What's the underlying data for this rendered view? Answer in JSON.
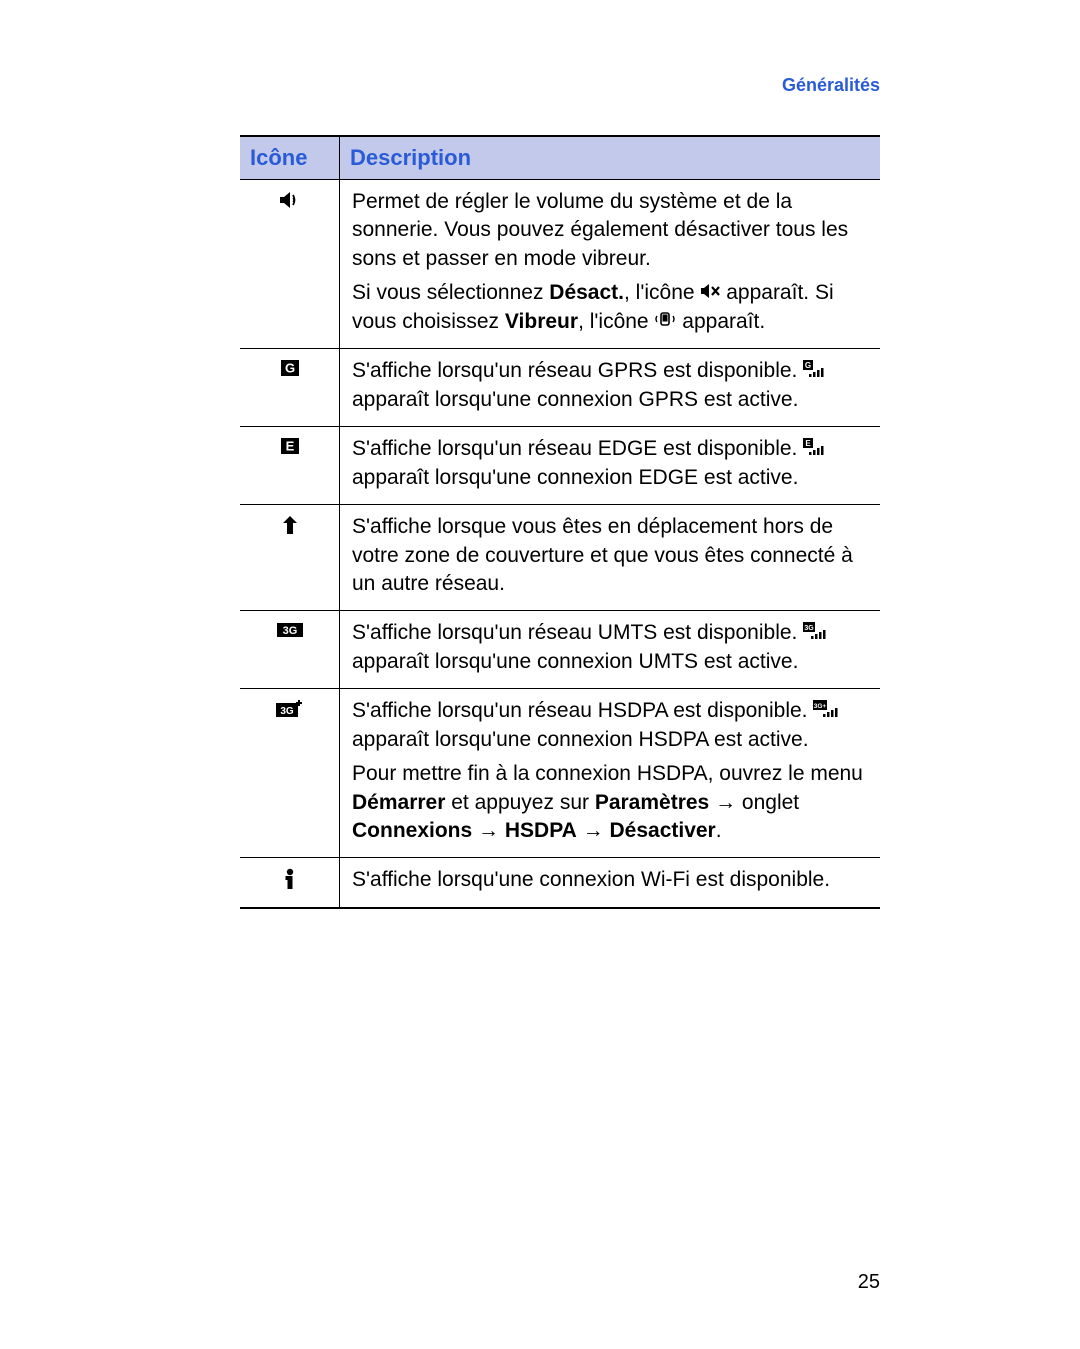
{
  "header": {
    "section_link": "Généralités"
  },
  "table": {
    "columns": {
      "icon": "Icône",
      "description": "Description"
    },
    "rows": [
      {
        "icon_name": "volume-icon",
        "icon_svg_idx": 0,
        "desc_paragraphs": [
          {
            "segments": [
              {
                "text": "Permet de régler le volume du système et de la sonnerie. Vous pouvez également désactiver tous les sons et passer en mode vibreur."
              }
            ]
          },
          {
            "segments": [
              {
                "text": "Si vous sélectionnez "
              },
              {
                "text": "Désact.",
                "bold": true
              },
              {
                "text": ", l'icône "
              },
              {
                "inline_icon": "mute-icon",
                "svg_idx": 1
              },
              {
                "text": " apparaît. Si vous choisissez "
              },
              {
                "text": "Vibreur",
                "bold": true
              },
              {
                "text": ", l'icône "
              },
              {
                "inline_icon": "vibrate-icon",
                "svg_idx": 2
              },
              {
                "text": " apparaît."
              }
            ]
          }
        ]
      },
      {
        "icon_name": "gprs-badge-icon",
        "icon_svg_idx": 3,
        "desc_paragraphs": [
          {
            "segments": [
              {
                "text": "S'affiche lorsqu'un réseau GPRS est disponible. "
              },
              {
                "inline_icon": "gprs-signal-icon",
                "svg_idx": 4
              },
              {
                "text": " apparaît lorsqu'une connexion GPRS est active."
              }
            ]
          }
        ]
      },
      {
        "icon_name": "edge-badge-icon",
        "icon_svg_idx": 5,
        "desc_paragraphs": [
          {
            "segments": [
              {
                "text": "S'affiche lorsqu'un réseau EDGE est disponible. "
              },
              {
                "inline_icon": "edge-signal-icon",
                "svg_idx": 6
              },
              {
                "text": " apparaît lorsqu'une connexion EDGE est active."
              }
            ]
          }
        ]
      },
      {
        "icon_name": "roaming-icon",
        "icon_svg_idx": 7,
        "desc_paragraphs": [
          {
            "segments": [
              {
                "text": "S'affiche lorsque vous êtes en déplacement hors de votre zone de couverture et que vous êtes connecté à un autre réseau."
              }
            ]
          }
        ]
      },
      {
        "icon_name": "umts-badge-icon",
        "icon_svg_idx": 8,
        "desc_paragraphs": [
          {
            "segments": [
              {
                "text": "S'affiche lorsqu'un réseau UMTS est disponible. "
              },
              {
                "inline_icon": "umts-signal-icon",
                "svg_idx": 9
              },
              {
                "text": " apparaît lorsqu'une connexion UMTS est active."
              }
            ]
          }
        ]
      },
      {
        "icon_name": "hsdpa-badge-icon",
        "icon_svg_idx": 10,
        "desc_paragraphs": [
          {
            "segments": [
              {
                "text": "S'affiche lorsqu'un réseau HSDPA est disponible. "
              },
              {
                "inline_icon": "hsdpa-signal-icon",
                "svg_idx": 11
              },
              {
                "text": " apparaît lorsqu'une connexion HSDPA est active."
              }
            ]
          },
          {
            "segments": [
              {
                "text": "Pour mettre fin à la connexion HSDPA, ouvrez le menu "
              },
              {
                "text": "Démarrer",
                "bold": true
              },
              {
                "text": " et appuyez sur "
              },
              {
                "text": "Paramètres",
                "bold": true
              },
              {
                "text": " → onglet "
              },
              {
                "text": "Connexions",
                "bold": true
              },
              {
                "text": " → "
              },
              {
                "text": "HSDPA",
                "bold": true
              },
              {
                "text": " → "
              },
              {
                "text": "Désactiver",
                "bold": true
              },
              {
                "text": "."
              }
            ]
          }
        ]
      },
      {
        "icon_name": "wifi-info-icon",
        "icon_svg_idx": 12,
        "desc_paragraphs": [
          {
            "segments": [
              {
                "text": "S'affiche lorsqu'une connexion Wi-Fi est disponible."
              }
            ]
          }
        ]
      }
    ]
  },
  "page_number": "25",
  "colors": {
    "header_bg": "#c3c9ea",
    "link_color": "#2a5bd7",
    "border": "#000000",
    "text": "#000000"
  },
  "icon_svgs": [
    "<svg width='22' height='20' viewBox='0 0 22 20'><path d='M1 7 L5 7 L11 2 L11 18 L5 13 L1 13 Z' fill='#000'/><path d='M14 5 Q17 10 14 15' stroke='#000' stroke-width='1.8' fill='none'/><path d='M14 8 Q16 10 14 12' stroke='#000' stroke-width='1.6' fill='none'/></svg>",
    "<svg width='20' height='16' viewBox='0 0 20 16'><path d='M1 5 L4 5 L9 1 L9 15 L4 11 L1 11 Z' fill='#000'/><line x1='12' y1='4' x2='19' y2='12' stroke='#000' stroke-width='2.2'/><line x1='19' y1='4' x2='12' y2='12' stroke='#000' stroke-width='2.2'/></svg>",
    "<svg width='22' height='18' viewBox='0 0 22 18'><rect x='7' y='3' width='8' height='12' rx='2' fill='none' stroke='#000' stroke-width='1.6'/><rect x='8.5' y='4.5' width='5' height='7' fill='#000'/><path d='M3 6 Q1 9 3 12' stroke='#000' stroke-width='1.4' fill='none'/><path d='M19 6 Q21 9 19 12' stroke='#000' stroke-width='1.4' fill='none'/></svg>",
    "<svg width='20' height='18' viewBox='0 0 20 18'><rect x='1' y='1' width='18' height='16' fill='#000'/><text x='10' y='13.5' text-anchor='middle' fill='#fff' font-size='13' font-family='Arial' font-weight='bold'>G</text></svg>",
    "<svg width='22' height='18' viewBox='0 0 22 18'><rect x='0' y='0' width='10' height='10' fill='#000'/><text x='5' y='8' text-anchor='middle' fill='#fff' font-size='8' font-family='Arial' font-weight='bold'>G</text><rect x='6' y='14' width='2.5' height='3' fill='#000'/><rect x='10' y='12' width='2.5' height='5' fill='#000'/><rect x='14' y='10' width='2.5' height='7' fill='#000'/><rect x='18' y='8' width='2.5' height='9' fill='#000'/></svg>",
    "<svg width='20' height='18' viewBox='0 0 20 18'><rect x='1' y='1' width='18' height='16' fill='#000'/><text x='10' y='13.5' text-anchor='middle' fill='#fff' font-size='13' font-family='Arial' font-weight='bold'>E</text></svg>",
    "<svg width='22' height='18' viewBox='0 0 22 18'><rect x='0' y='0' width='10' height='10' fill='#000'/><text x='5' y='8' text-anchor='middle' fill='#fff' font-size='8' font-family='Arial' font-weight='bold'>E</text><rect x='6' y='14' width='2.5' height='3' fill='#000'/><rect x='10' y='12' width='2.5' height='5' fill='#000'/><rect x='14' y='10' width='2.5' height='7' fill='#000'/><rect x='18' y='8' width='2.5' height='9' fill='#000'/></svg>",
    "<svg width='18' height='20' viewBox='0 0 18 20'><path d='M9 1 L16 8 L12 8 L12 19 L6 19 L6 8 L2 8 Z' fill='#000'/></svg>",
    "<svg width='28' height='18' viewBox='0 0 28 18'><rect x='1' y='2' width='26' height='14' fill='#000'/><text x='14' y='13' text-anchor='middle' fill='#fff' font-size='11' font-family='Arial' font-weight='bold'>3G</text></svg>",
    "<svg width='24' height='18' viewBox='0 0 24 18'><rect x='0' y='0' width='12' height='10' fill='#000'/><text x='6' y='8' text-anchor='middle' fill='#fff' font-size='7' font-family='Arial' font-weight='bold'>3G</text><rect x='8' y='14' width='2.5' height='3' fill='#000'/><rect x='12' y='12' width='2.5' height='5' fill='#000'/><rect x='16' y='10' width='2.5' height='7' fill='#000'/><rect x='20' y='8' width='2.5' height='9' fill='#000'/></svg>",
    "<svg width='30' height='20' viewBox='0 0 30 20'><rect x='1' y='4' width='22' height='14' fill='#000'/><text x='12' y='15' text-anchor='middle' fill='#fff' font-size='10' font-family='Arial' font-weight='bold'>3G</text><path d='M24 1 L24 7 M21 4 L27 4' stroke='#000' stroke-width='2'/></svg>",
    "<svg width='26' height='18' viewBox='0 0 26 18'><rect x='0' y='0' width='14' height='10' fill='#000'/><text x='7' y='8' text-anchor='middle' fill='#fff' font-size='6.5' font-family='Arial' font-weight='bold'>3G+</text><rect x='10' y='14' width='2.5' height='3' fill='#000'/><rect x='14' y='12' width='2.5' height='5' fill='#000'/><rect x='18' y='10' width='2.5' height='7' fill='#000'/><rect x='22' y='8' width='2.5' height='9' fill='#000'/></svg>",
    "<svg width='14' height='22' viewBox='0 0 14 22'><circle cx='7' cy='4' r='3.2' fill='#000'/><rect x='4.5' y='8' width='5' height='13' fill='#000'/><rect x='2.5' y='8' width='4' height='4' fill='#000'/></svg>"
  ]
}
